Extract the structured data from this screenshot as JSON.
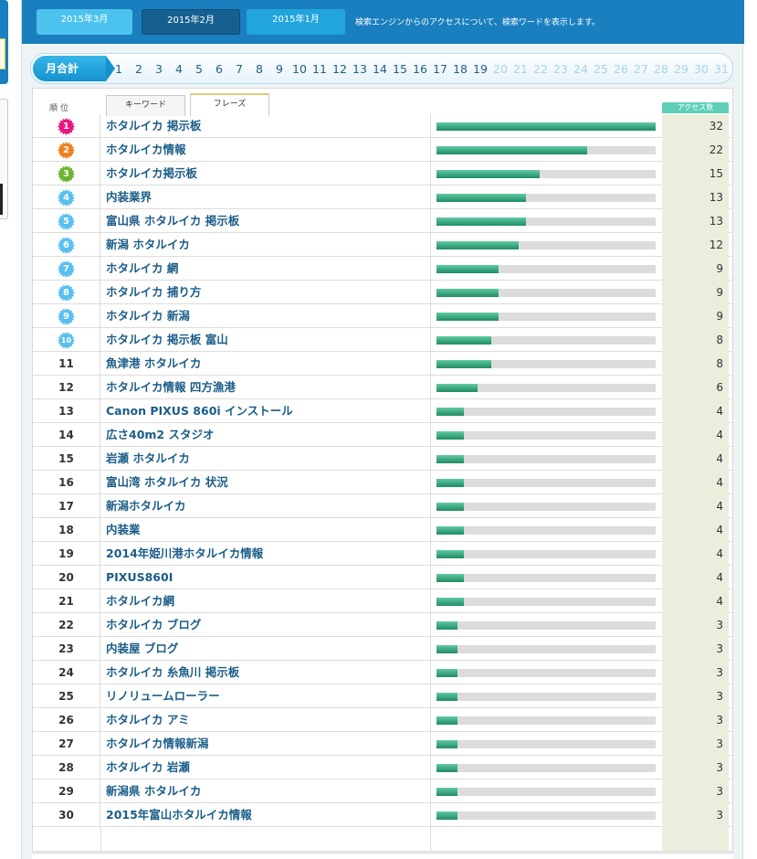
{
  "months": [
    "2015年3月",
    "2015年2月",
    "2015年1月"
  ],
  "description": "検索エンジンからのアクセスについて、検索ワードを表示します。",
  "monthly_label": "月合計",
  "days": [
    "1",
    "2",
    "3",
    "4",
    "5",
    "6",
    "7",
    "8",
    "9",
    "10",
    "11",
    "12",
    "13",
    "14",
    "15",
    "16",
    "17",
    "18",
    "19",
    "20",
    "21",
    "22",
    "23",
    "24",
    "25",
    "26",
    "27",
    "28",
    "29",
    "30",
    "31"
  ],
  "days_active_count": 19,
  "table": {
    "rank_header": "順位",
    "tabs": [
      "キーワード",
      "フレーズ"
    ],
    "active_tab": "フレーズ",
    "count_header": "アクセス数",
    "max_count": 32,
    "rows": [
      {
        "rank": "1",
        "word": "ホタルイカ 掲示板",
        "count": "32"
      },
      {
        "rank": "2",
        "word": "ホタルイカ情報",
        "count": "22"
      },
      {
        "rank": "3",
        "word": "ホタルイカ掲示板",
        "count": "15"
      },
      {
        "rank": "4",
        "word": "内装業界",
        "count": "13"
      },
      {
        "rank": "5",
        "word": "富山県 ホタルイカ 掲示板",
        "count": "13"
      },
      {
        "rank": "6",
        "word": "新潟 ホタルイカ",
        "count": "12"
      },
      {
        "rank": "7",
        "word": "ホタルイカ 網",
        "count": "9"
      },
      {
        "rank": "8",
        "word": "ホタルイカ 捕り方",
        "count": "9"
      },
      {
        "rank": "9",
        "word": "ホタルイカ 新潟",
        "count": "9"
      },
      {
        "rank": "10",
        "word": "ホタルイカ 掲示板 富山",
        "count": "8"
      },
      {
        "rank": "11",
        "word": "魚津港 ホタルイカ",
        "count": "8"
      },
      {
        "rank": "12",
        "word": "ホタルイカ情報 四方漁港",
        "count": "6"
      },
      {
        "rank": "13",
        "word": "Canon PIXUS 860i インストール",
        "count": "4"
      },
      {
        "rank": "14",
        "word": "広さ40m2 スタジオ",
        "count": "4"
      },
      {
        "rank": "15",
        "word": "岩瀬 ホタルイカ",
        "count": "4"
      },
      {
        "rank": "16",
        "word": "富山湾 ホタルイカ 状況",
        "count": "4"
      },
      {
        "rank": "17",
        "word": "新潟ホタルイカ",
        "count": "4"
      },
      {
        "rank": "18",
        "word": "内装業",
        "count": "4"
      },
      {
        "rank": "19",
        "word": "2014年姫川港ホタルイカ情報",
        "count": "4"
      },
      {
        "rank": "20",
        "word": "PIXUS860I",
        "count": "4"
      },
      {
        "rank": "21",
        "word": "ホタルイカ網",
        "count": "4"
      },
      {
        "rank": "22",
        "word": "ホタルイカ ブログ",
        "count": "3"
      },
      {
        "rank": "23",
        "word": "内装屋 ブログ",
        "count": "3"
      },
      {
        "rank": "24",
        "word": "ホタルイカ 糸魚川 掲示板",
        "count": "3"
      },
      {
        "rank": "25",
        "word": "リノリュームローラー",
        "count": "3"
      },
      {
        "rank": "26",
        "word": "ホタルイカ アミ",
        "count": "3"
      },
      {
        "rank": "27",
        "word": "ホタルイカ情報新潟",
        "count": "3"
      },
      {
        "rank": "28",
        "word": "ホタルイカ 岩瀬",
        "count": "3"
      },
      {
        "rank": "29",
        "word": "新潟県 ホタルイカ",
        "count": "3"
      },
      {
        "rank": "30",
        "word": "2015年富山ホタルイカ情報",
        "count": "3"
      }
    ]
  },
  "badge_colors": {
    "1": "#e7157f",
    "2": "#f07f1d",
    "3": "#6cb32e",
    "default": "#59bff0"
  }
}
